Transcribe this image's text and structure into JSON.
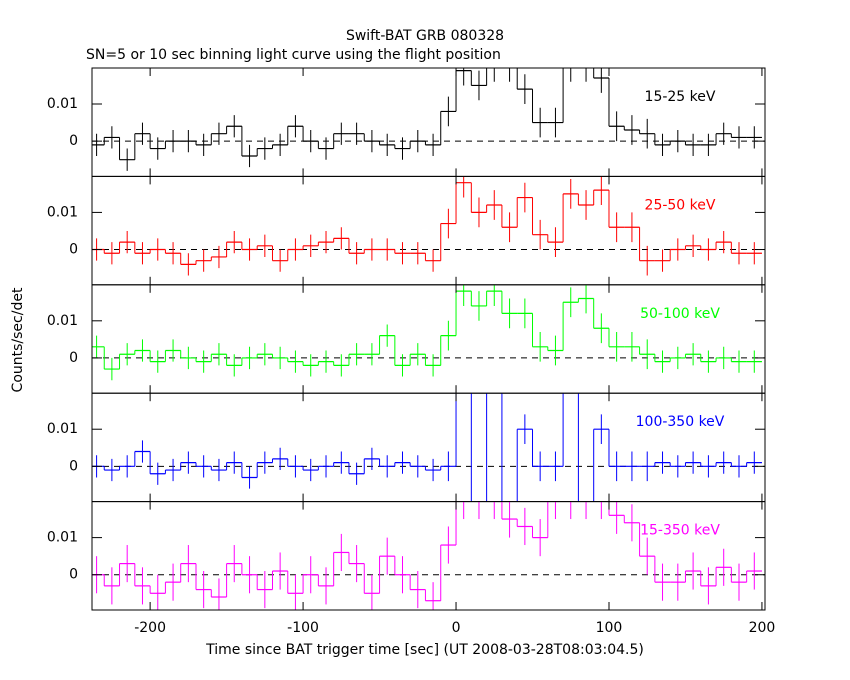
{
  "chart_data": {
    "type": "line",
    "title": "Swift-BAT GRB 080328",
    "subtitle": "SN=5 or 10 sec binning light curve using the flight position",
    "xlabel": "Time since BAT trigger time [sec] (UT 2008-03-28T08:03:04.5)",
    "ylabel": "Counts/sec/det",
    "xlim": [
      -238,
      202
    ],
    "xticks": [
      -200,
      -100,
      0,
      100,
      200
    ],
    "ylim": [
      -0.0095,
      0.0197
    ],
    "yticks": [
      0,
      0.01
    ],
    "bin_width": 10,
    "x": [
      -235,
      -225,
      -215,
      -205,
      -195,
      -185,
      -175,
      -165,
      -155,
      -145,
      -135,
      -125,
      -115,
      -105,
      -95,
      -85,
      -75,
      -65,
      -55,
      -45,
      -35,
      -25,
      -15,
      -5,
      5,
      15,
      25,
      35,
      45,
      55,
      65,
      75,
      85,
      95,
      105,
      115,
      125,
      135,
      145,
      155,
      165,
      175,
      185,
      195
    ],
    "series": [
      {
        "name": "15-25 keV",
        "color": "#000000",
        "values": [
          -0.001,
          0.001,
          -0.005,
          0.002,
          -0.002,
          0.0,
          0.0,
          -0.001,
          0.002,
          0.004,
          -0.004,
          -0.002,
          -0.001,
          0.004,
          0.0,
          -0.002,
          0.002,
          0.002,
          0.0,
          -0.001,
          -0.002,
          0.0,
          -0.001,
          0.008,
          0.019,
          0.015,
          0.02,
          0.02,
          0.014,
          0.005,
          0.005,
          0.02,
          0.02,
          0.017,
          0.004,
          0.003,
          0.002,
          -0.001,
          0.0,
          -0.001,
          -0.001,
          0.002,
          0.001,
          0.001
        ],
        "errors": [
          0.003,
          0.003,
          0.003,
          0.003,
          0.003,
          0.003,
          0.003,
          0.003,
          0.003,
          0.003,
          0.003,
          0.003,
          0.003,
          0.003,
          0.003,
          0.003,
          0.003,
          0.003,
          0.003,
          0.003,
          0.003,
          0.003,
          0.003,
          0.004,
          0.004,
          0.004,
          0.004,
          0.004,
          0.004,
          0.004,
          0.004,
          0.004,
          0.004,
          0.004,
          0.004,
          0.004,
          0.004,
          0.003,
          0.003,
          0.003,
          0.003,
          0.003,
          0.003,
          0.003
        ]
      },
      {
        "name": "25-50 keV",
        "color": "#ff0000",
        "values": [
          0.0,
          -0.001,
          0.002,
          -0.001,
          0.0,
          -0.001,
          -0.004,
          -0.003,
          -0.002,
          0.002,
          0.0,
          0.001,
          -0.003,
          0.0,
          0.001,
          0.002,
          0.003,
          -0.001,
          0.0,
          0.0,
          -0.001,
          -0.001,
          -0.003,
          0.007,
          0.018,
          0.01,
          0.012,
          0.006,
          0.014,
          0.004,
          0.002,
          0.015,
          0.012,
          0.016,
          0.006,
          0.006,
          -0.003,
          -0.003,
          0.0,
          0.001,
          0.0,
          0.002,
          -0.001,
          -0.001
        ],
        "errors": [
          0.003,
          0.003,
          0.003,
          0.003,
          0.003,
          0.003,
          0.003,
          0.003,
          0.003,
          0.003,
          0.003,
          0.003,
          0.003,
          0.003,
          0.003,
          0.003,
          0.003,
          0.003,
          0.003,
          0.003,
          0.003,
          0.003,
          0.003,
          0.004,
          0.004,
          0.004,
          0.004,
          0.004,
          0.004,
          0.004,
          0.004,
          0.004,
          0.004,
          0.004,
          0.004,
          0.004,
          0.004,
          0.003,
          0.003,
          0.003,
          0.003,
          0.003,
          0.003,
          0.003
        ]
      },
      {
        "name": "50-100 keV",
        "color": "#00ff00",
        "values": [
          0.003,
          -0.003,
          0.001,
          0.002,
          -0.001,
          0.002,
          0.0,
          -0.001,
          0.001,
          -0.002,
          0.0,
          0.001,
          0.0,
          -0.001,
          -0.002,
          -0.001,
          -0.002,
          0.001,
          0.001,
          0.006,
          -0.002,
          0.001,
          -0.002,
          0.006,
          0.018,
          0.014,
          0.018,
          0.012,
          0.012,
          0.003,
          0.002,
          0.015,
          0.016,
          0.008,
          0.003,
          0.003,
          0.001,
          -0.001,
          0.0,
          0.001,
          -0.001,
          0.0,
          -0.001,
          -0.001
        ],
        "errors": [
          0.003,
          0.003,
          0.003,
          0.003,
          0.003,
          0.003,
          0.003,
          0.003,
          0.003,
          0.003,
          0.003,
          0.003,
          0.003,
          0.003,
          0.003,
          0.003,
          0.003,
          0.003,
          0.003,
          0.003,
          0.003,
          0.003,
          0.003,
          0.004,
          0.004,
          0.004,
          0.004,
          0.004,
          0.004,
          0.004,
          0.004,
          0.004,
          0.004,
          0.004,
          0.004,
          0.004,
          0.004,
          0.003,
          0.003,
          0.003,
          0.003,
          0.003,
          0.003,
          0.003
        ]
      },
      {
        "name": "100-350 keV",
        "color": "#0000ff",
        "values": [
          0.0,
          -0.001,
          0.0,
          0.004,
          -0.002,
          -0.001,
          0.001,
          0.0,
          -0.001,
          0.001,
          -0.003,
          0.001,
          0.002,
          0.0,
          -0.001,
          0.0,
          0.001,
          -0.002,
          0.002,
          0.0,
          0.001,
          0.0,
          -0.001,
          0.0,
          0.025,
          -0.015,
          0.025,
          -0.015,
          0.01,
          0.0,
          0.0,
          0.025,
          -0.015,
          0.01,
          0.0,
          0.0,
          0.0,
          0.001,
          0.0,
          0.001,
          0.0,
          0.001,
          0.0,
          0.001
        ],
        "errors": [
          0.003,
          0.003,
          0.003,
          0.003,
          0.003,
          0.003,
          0.003,
          0.003,
          0.003,
          0.003,
          0.003,
          0.003,
          0.003,
          0.003,
          0.003,
          0.003,
          0.003,
          0.003,
          0.003,
          0.003,
          0.003,
          0.003,
          0.003,
          0.004,
          0.004,
          0.004,
          0.004,
          0.004,
          0.004,
          0.004,
          0.004,
          0.004,
          0.004,
          0.004,
          0.004,
          0.004,
          0.004,
          0.003,
          0.003,
          0.003,
          0.003,
          0.003,
          0.003,
          0.003
        ]
      },
      {
        "name": "15-350 keV",
        "color": "#ff00ff",
        "values": [
          0.0,
          -0.003,
          0.003,
          -0.003,
          -0.005,
          -0.002,
          0.003,
          -0.004,
          -0.006,
          0.003,
          0.0,
          -0.004,
          0.001,
          -0.005,
          0.0,
          -0.003,
          0.006,
          0.003,
          -0.005,
          0.005,
          0.0,
          -0.004,
          -0.007,
          0.008,
          0.02,
          0.02,
          0.02,
          0.015,
          0.013,
          0.01,
          0.02,
          0.02,
          0.02,
          0.02,
          0.016,
          0.014,
          0.005,
          -0.002,
          -0.002,
          0.001,
          -0.003,
          0.002,
          -0.002,
          0.001
        ],
        "errors": [
          0.005,
          0.005,
          0.005,
          0.005,
          0.005,
          0.005,
          0.005,
          0.005,
          0.005,
          0.005,
          0.005,
          0.005,
          0.005,
          0.005,
          0.005,
          0.005,
          0.005,
          0.005,
          0.005,
          0.005,
          0.005,
          0.005,
          0.005,
          0.005,
          0.005,
          0.005,
          0.005,
          0.005,
          0.005,
          0.005,
          0.005,
          0.005,
          0.005,
          0.005,
          0.005,
          0.005,
          0.005,
          0.005,
          0.005,
          0.005,
          0.005,
          0.005,
          0.005,
          0.005
        ]
      }
    ]
  }
}
